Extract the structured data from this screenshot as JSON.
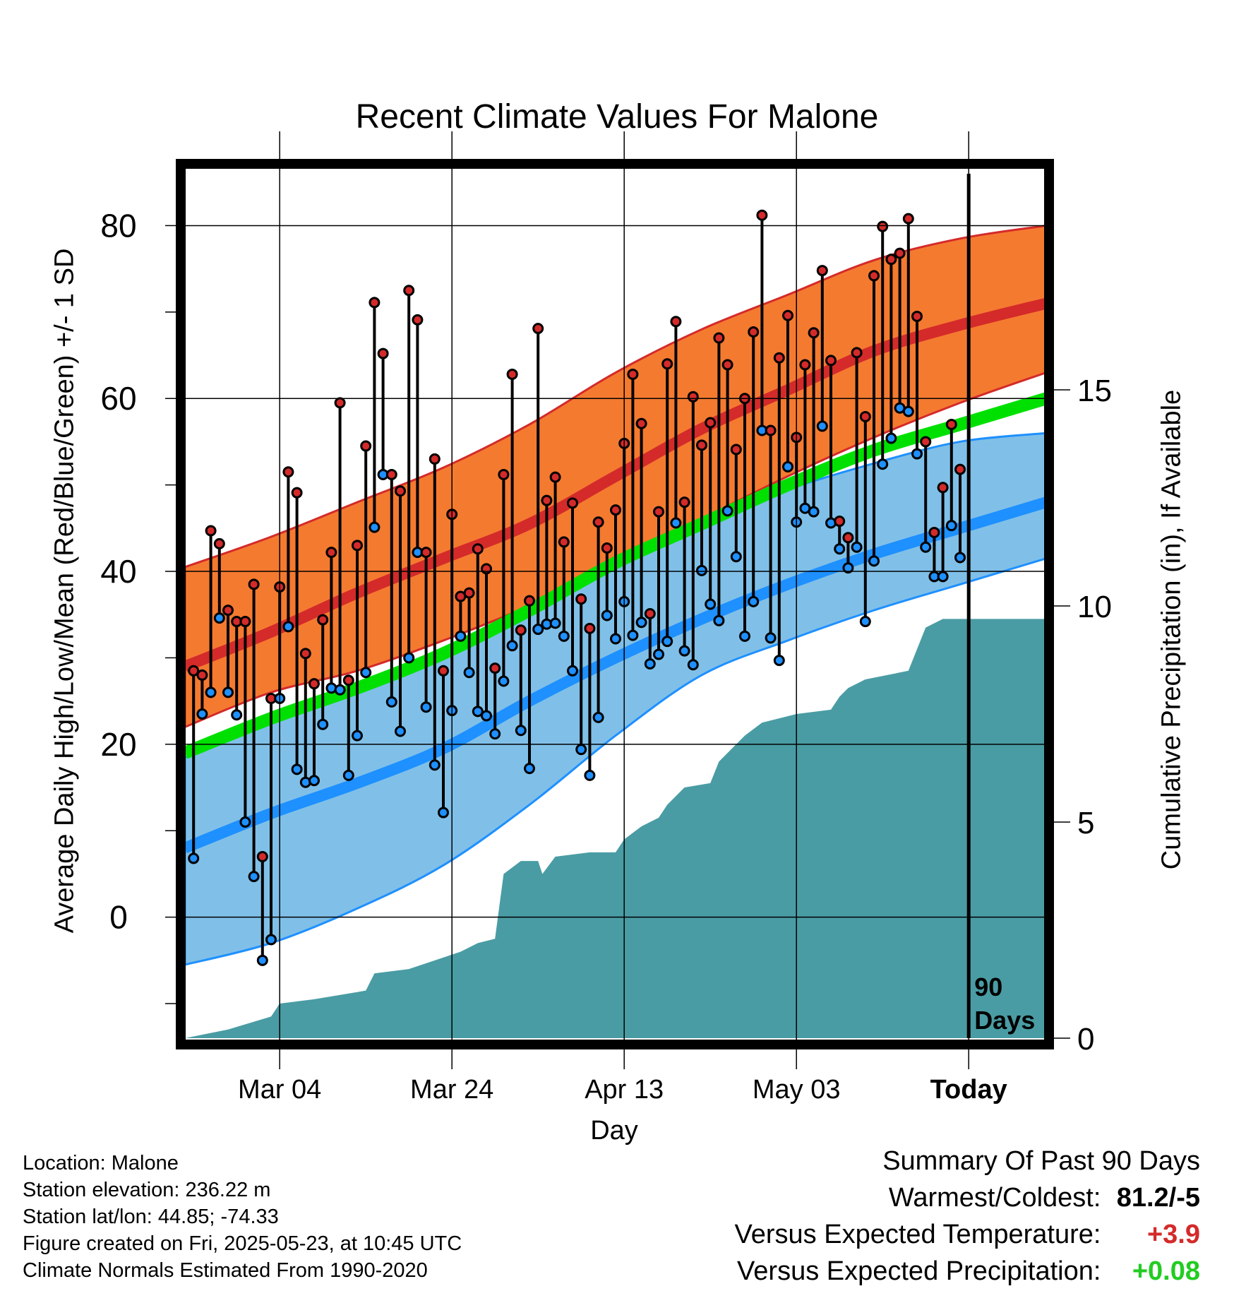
{
  "chart_data": {
    "type": "line",
    "title": "Recent Climate Values For Malone",
    "xlabel": "Day",
    "ylabel": "Average Daily High/Low/Mean (Red/Blue/Green) +/- 1 SD",
    "y2label": "Cumulative Precipitation (in), If Available",
    "x_ticks": [
      {
        "label": "Mar 04",
        "day": 11
      },
      {
        "label": "Mar 24",
        "day": 31
      },
      {
        "label": "Apr 13",
        "day": 51
      },
      {
        "label": "May 03",
        "day": 71
      },
      {
        "label": "Today",
        "day": 91
      }
    ],
    "xlim": [
      0,
      100
    ],
    "ylim": [
      -14,
      86
    ],
    "y_ticks": [
      0,
      20,
      40,
      60,
      80
    ],
    "y2lim": [
      0,
      20
    ],
    "y2_ticks": [
      0,
      5,
      10,
      15
    ],
    "grid": true,
    "today_marker_label": "90 Days",
    "normals": {
      "x": [
        0,
        10,
        20,
        30,
        40,
        50,
        60,
        70,
        80,
        90,
        100
      ],
      "high_mean": [
        29,
        33,
        37.5,
        41.5,
        45.5,
        51,
        56.5,
        61,
        65.5,
        68.5,
        71
      ],
      "high_upper": [
        40.5,
        44,
        48,
        52,
        57,
        63,
        68,
        72,
        76,
        78.5,
        80
      ],
      "high_lower": [
        22,
        26,
        28.5,
        32,
        36,
        40.5,
        46,
        51,
        55.5,
        59.5,
        63
      ],
      "low_mean": [
        8,
        12,
        15.5,
        19.5,
        25,
        30,
        34.5,
        38.5,
        42,
        45,
        48
      ],
      "low_upper": [
        18.5,
        23,
        27,
        31,
        36,
        42,
        46,
        49.5,
        52.5,
        55,
        56
      ],
      "low_lower": [
        -5.5,
        -3,
        1,
        6,
        13,
        21,
        28,
        32,
        35.5,
        38.5,
        41.5
      ],
      "mean": [
        19,
        23,
        26.5,
        30.5,
        35.5,
        41,
        45.5,
        50,
        54,
        57,
        60
      ]
    },
    "series": [
      {
        "name": "High",
        "values": [
          28.5,
          28,
          44.7,
          43.2,
          35.5,
          34.2,
          34.2,
          38.5,
          7,
          25.3,
          38.2,
          51.5,
          49.1,
          30.5,
          27,
          34.4,
          42.2,
          59.5,
          27.4,
          43,
          54.5,
          71.1,
          65.2,
          51.2,
          49.3,
          72.5,
          69.1,
          42.2,
          53,
          28.5,
          46.6,
          37.1,
          37.5,
          42.6,
          40.3,
          28.8,
          51.2,
          62.8,
          33.2,
          36.6,
          68.1,
          48.2,
          50.9,
          43.4,
          47.9,
          36.8,
          33.4,
          45.7,
          42.7,
          47.1,
          54.8,
          62.8,
          57.1,
          35.1,
          46.9,
          64,
          68.9,
          48,
          60.2,
          54.6,
          57.2,
          67,
          63.9,
          54.1,
          60,
          67.7,
          81.2,
          56.3,
          64.7,
          69.6,
          55.5,
          63.9,
          67.6,
          74.8,
          64.4,
          45.8,
          43.9,
          65.3,
          57.9,
          74.2,
          79.9,
          76.1,
          76.8,
          80.8,
          69.5,
          55,
          44.5,
          49.7,
          57,
          51.8
        ]
      },
      {
        "name": "Low",
        "values": [
          6.8,
          23.5,
          26,
          34.6,
          26,
          23.4,
          11,
          4.7,
          -5,
          -2.6,
          25.3,
          33.6,
          17.1,
          15.6,
          15.8,
          22.3,
          26.5,
          26.3,
          16.4,
          21,
          28.3,
          45.1,
          51.2,
          24.9,
          21.5,
          30,
          42.2,
          24.3,
          17.6,
          12.1,
          23.9,
          32.5,
          28.3,
          23.8,
          23.3,
          21.2,
          27.3,
          31.4,
          21.6,
          17.2,
          33.3,
          33.9,
          34,
          32.5,
          28.5,
          19.4,
          16.4,
          23.1,
          34.9,
          32.2,
          36.5,
          32.6,
          34.1,
          29.3,
          30.4,
          31.9,
          45.6,
          30.8,
          29.2,
          40.1,
          36.2,
          34.3,
          47,
          41.7,
          32.5,
          36.5,
          56.3,
          32.3,
          29.7,
          52.1,
          45.7,
          47.3,
          46.9,
          56.8,
          45.6,
          42.6,
          40.4,
          42.8,
          34.2,
          41.2,
          52.4,
          55.4,
          58.9,
          58.5,
          53.6,
          42.8,
          39.4,
          39.4,
          45.3,
          41.6
        ]
      }
    ],
    "precip_cumulative": {
      "x": [
        0,
        5,
        10,
        11,
        15,
        21,
        22,
        26,
        32,
        34,
        36,
        37,
        39,
        41,
        41.5,
        43,
        47,
        50,
        51,
        53,
        55,
        56,
        58,
        61,
        62,
        64,
        65,
        67,
        71,
        75,
        76,
        77,
        79,
        84,
        86,
        88,
        100
      ],
      "y": [
        0,
        0.2,
        0.5,
        0.8,
        0.9,
        1.1,
        1.5,
        1.6,
        2.0,
        2.2,
        2.3,
        3.8,
        4.1,
        4.1,
        3.8,
        4.2,
        4.3,
        4.3,
        4.6,
        4.9,
        5.1,
        5.4,
        5.8,
        5.9,
        6.4,
        6.8,
        7.0,
        7.3,
        7.5,
        7.6,
        7.9,
        8.1,
        8.3,
        8.5,
        9.5,
        9.7,
        9.7
      ]
    }
  },
  "colors": {
    "high_band": "#f47a30",
    "high_line": "#d42a2a",
    "low_band": "#80c0e8",
    "low_line": "#1e90ff",
    "mean_line": "#00e000",
    "precip": "#4a9ca4",
    "warm_text": "#d42a2a",
    "wet_text": "#22cc22"
  },
  "info": {
    "location": "Location: Malone",
    "elevation": "Station elevation: 236.22 m",
    "latlon": "Station lat/lon: 44.85; -74.33",
    "created": "Figure created on Fri, 2025-05-23, at 10:45 UTC",
    "normals": "Climate Normals Estimated From 1990-2020"
  },
  "summary": {
    "title": "Summary Of Past 90 Days",
    "warmest_label": "Warmest/Coldest:",
    "warmest_value": "81.2/-5",
    "temp_label": "Versus Expected Temperature:",
    "temp_value": "+3.9",
    "precip_label": "Versus Expected Precipitation:",
    "precip_value": "+0.08"
  }
}
